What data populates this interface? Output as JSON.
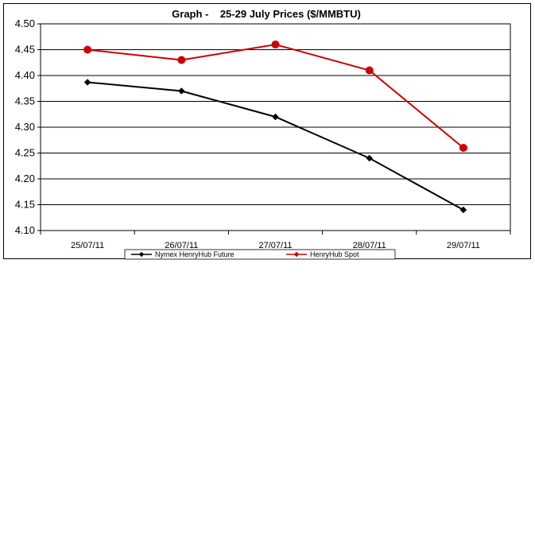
{
  "chart_data": {
    "type": "line",
    "title": "Graph -    25-29 July Prices ($/MMBTU)",
    "categories": [
      "25/07/11",
      "26/07/11",
      "27/07/11",
      "28/07/11",
      "29/07/11"
    ],
    "ylim": [
      4.1,
      4.5
    ],
    "yticks": [
      "4.10",
      "4.15",
      "4.20",
      "4.25",
      "4.30",
      "4.35",
      "4.40",
      "4.45",
      "4.50"
    ],
    "grid": true,
    "legend_position": "bottom",
    "series": [
      {
        "name": "Nymex HenryHub Future",
        "values": [
          4.387,
          4.37,
          4.32,
          4.24,
          4.14
        ],
        "color": "#000000",
        "marker": "diamond"
      },
      {
        "name": "HenryHub Spot",
        "values": [
          4.45,
          4.43,
          4.46,
          4.41,
          4.26
        ],
        "color": "#cc0000",
        "marker": "circle"
      }
    ]
  }
}
